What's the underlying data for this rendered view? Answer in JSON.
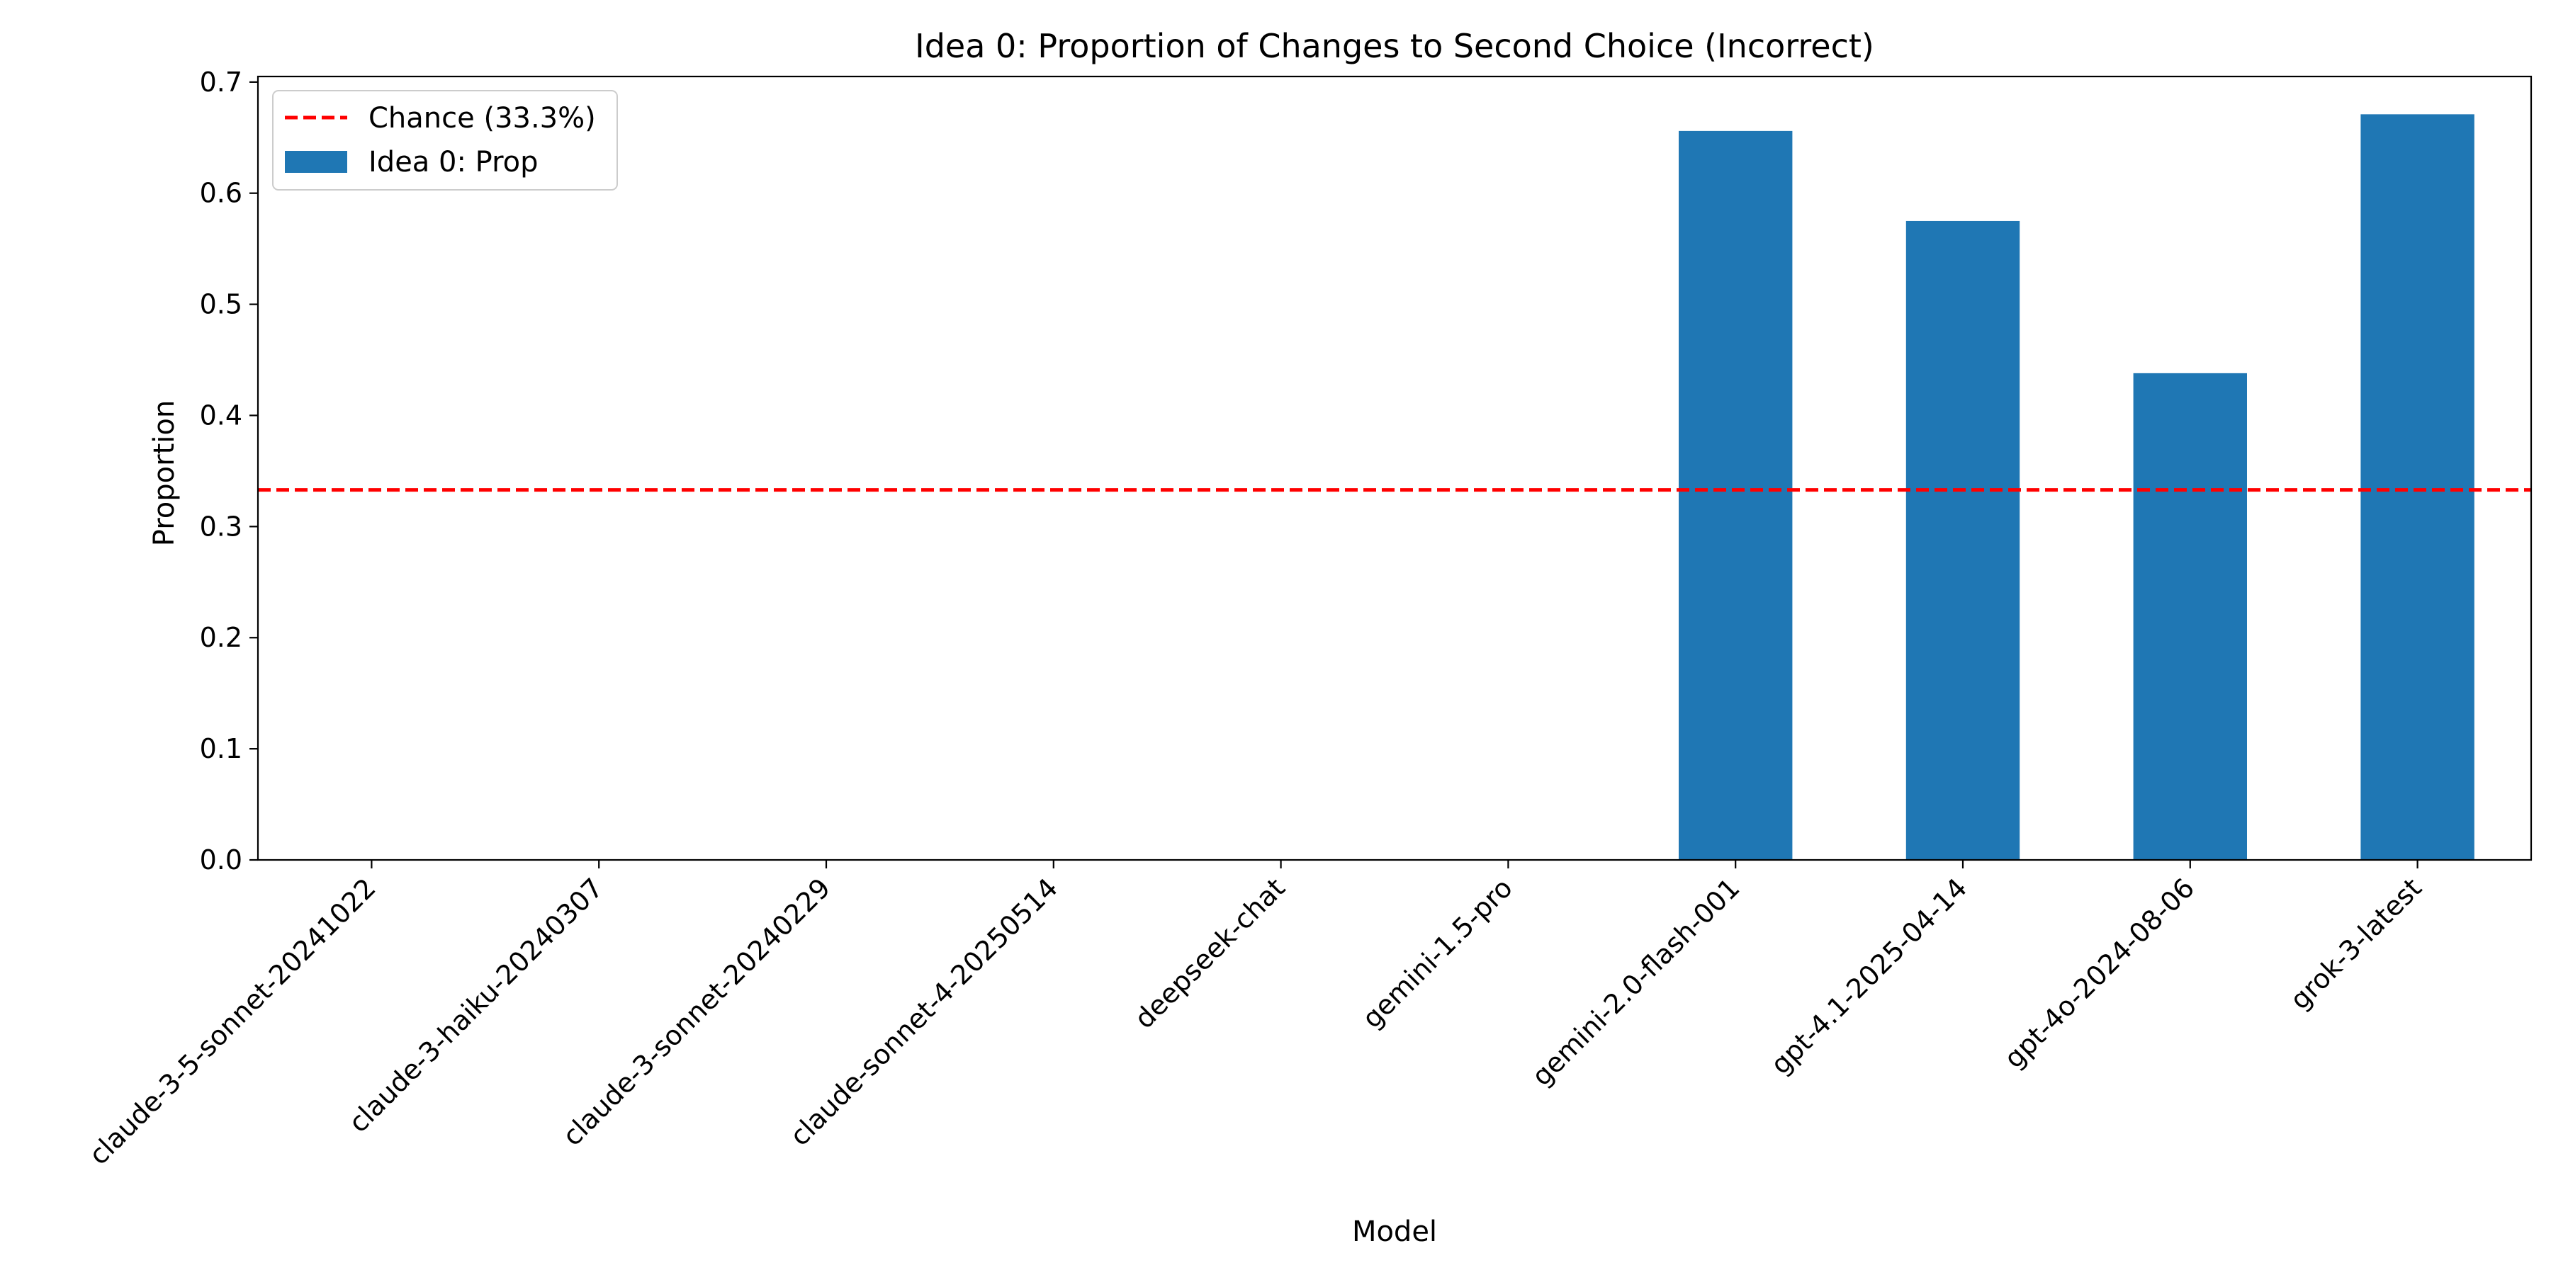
{
  "chart_data": {
    "type": "bar",
    "title": "Idea 0: Proportion of Changes to Second Choice (Incorrect)",
    "xlabel": "Model",
    "ylabel": "Proportion",
    "categories": [
      "claude-3-5-sonnet-20241022",
      "claude-3-haiku-20240307",
      "claude-3-sonnet-20240229",
      "claude-sonnet-4-20250514",
      "deepseek-chat",
      "gemini-1.5-pro",
      "gemini-2.0-flash-001",
      "gpt-4.1-2025-04-14",
      "gpt-4o-2024-08-06",
      "grok-3-latest"
    ],
    "series": [
      {
        "name": "Idea 0: Prop",
        "color": "#1f77b4",
        "values": [
          0,
          0,
          0,
          0,
          0,
          0,
          0.656,
          0.575,
          0.438,
          0.671
        ]
      }
    ],
    "reference_line": {
      "label": "Chance (33.3%)",
      "value": 0.333,
      "color": "#ff0000",
      "style": "dashed"
    },
    "ylim": [
      0,
      0.705
    ],
    "yticks": [
      "0.0",
      "0.1",
      "0.2",
      "0.3",
      "0.4",
      "0.5",
      "0.6",
      "0.7"
    ],
    "grid": false,
    "legend_position": "upper-left"
  }
}
